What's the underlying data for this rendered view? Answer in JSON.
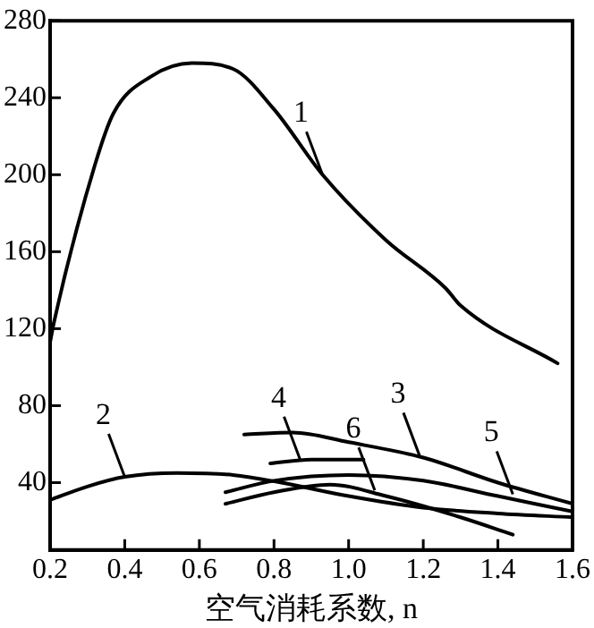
{
  "chart_data": {
    "type": "line",
    "xlabel": "空气消耗系数, n",
    "series": [
      {
        "color": "#000000",
        "x": [
          0.2,
          0.21,
          0.32,
          0.37,
          0.47,
          0.58,
          0.69,
          0.8,
          0.93,
          1.1,
          1.26,
          1.3,
          1.56
        ],
        "values": [
          113,
          123,
          205,
          232,
          251,
          258,
          255,
          234,
          200,
          166,
          141,
          132,
          102
        ]
      },
      {
        "color": "#000000",
        "x": [
          0.2,
          0.3,
          0.4,
          0.54,
          0.69,
          0.82,
          1.0,
          1.2,
          1.4,
          1.6
        ],
        "values": [
          31,
          38,
          43,
          45,
          44,
          40,
          33,
          27,
          24,
          22
        ]
      },
      {
        "color": "#000000",
        "x": [
          0.72,
          0.85,
          1.0,
          1.2,
          1.4,
          1.6
        ],
        "values": [
          65,
          66,
          61,
          53,
          40,
          29
        ]
      },
      {
        "color": "#000000",
        "x": [
          0.79,
          0.9,
          1.04
        ],
        "values": [
          50,
          52,
          52
        ]
      },
      {
        "color": "#000000",
        "x": [
          0.67,
          0.8,
          1.0,
          1.2,
          1.4,
          1.6
        ],
        "values": [
          35,
          41,
          44,
          41,
          33,
          25
        ]
      },
      {
        "color": "#000000",
        "x": [
          0.67,
          0.8,
          0.95,
          1.1,
          1.3,
          1.44
        ],
        "values": [
          29,
          35,
          39,
          33,
          22,
          13
        ]
      }
    ],
    "xlim": [
      0.2,
      1.6
    ],
    "xticks": [
      0.2,
      0.4,
      0.6,
      0.8,
      {
        "value": 1,
        "label": "1.0"
      },
      1.2,
      1.4,
      1.6
    ],
    "ylim": [
      5,
      280
    ],
    "yticks": [
      40,
      80,
      120,
      160,
      200,
      240,
      280
    ],
    "annotations": [
      {
        "text": "1",
        "x": 0.93,
        "y": 200
      },
      {
        "text": "2",
        "x": 0.4,
        "y": 43
      },
      {
        "text": "3",
        "x": 1.19,
        "y": 54
      },
      {
        "text": "4",
        "x": 0.87,
        "y": 52
      },
      {
        "text": "5",
        "x": 1.44,
        "y": 34
      },
      {
        "text": "6",
        "x": 1.07,
        "y": 36
      }
    ],
    "grid": false,
    "legend": false,
    "marker": "none",
    "line_style": "solid"
  }
}
